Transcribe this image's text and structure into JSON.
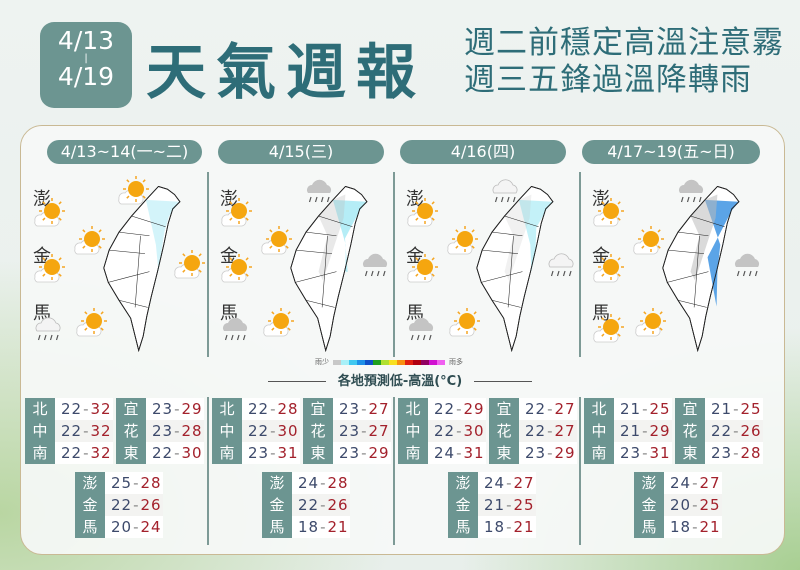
{
  "header": {
    "date_start": "4/13",
    "date_sep": "|",
    "date_end": "4/19",
    "title": "天氣週報",
    "subtitle_line1": "週二前穩定高溫注意霧",
    "subtitle_line2": "週三五鋒過溫降轉雨"
  },
  "colors": {
    "accent": "#6c9591",
    "title": "#2e6d78",
    "low": "#3d4a6b",
    "high": "#a3212c"
  },
  "islands": {
    "penghu": "澎",
    "kinmen": "金",
    "matsu": "馬"
  },
  "legend": {
    "less": "雨少",
    "more": "雨多",
    "colors": [
      "#c8c8c8",
      "#a8f0f8",
      "#40c8f0",
      "#1e90e8",
      "#1050c8",
      "#20a020",
      "#b0e030",
      "#f8e020",
      "#f89010",
      "#e02010",
      "#b00010",
      "#900060",
      "#d010d0",
      "#f060f0"
    ]
  },
  "table_title": "各地預測低-高溫(°C)",
  "panels": [
    {
      "label": "4/13~14(一~二)",
      "rain": 0.15,
      "icons": {
        "north": "sun-cloud",
        "penghu": "sun",
        "west": "sun",
        "kinmen": "sun",
        "east": "sun",
        "matsu_east": "sun",
        "matsu": "rain-light"
      },
      "left": [
        {
          "name": "北",
          "low": "22",
          "high": "32"
        },
        {
          "name": "中",
          "low": "22",
          "high": "32"
        },
        {
          "name": "南",
          "low": "22",
          "high": "32"
        }
      ],
      "right": [
        {
          "name": "宜",
          "low": "23",
          "high": "29"
        },
        {
          "name": "花",
          "low": "23",
          "high": "28"
        },
        {
          "name": "東",
          "low": "22",
          "high": "30"
        }
      ],
      "islands": [
        {
          "name": "澎",
          "low": "25",
          "high": "28"
        },
        {
          "name": "金",
          "low": "22",
          "high": "26"
        },
        {
          "name": "馬",
          "low": "20",
          "high": "24"
        }
      ]
    },
    {
      "label": "4/15(三)",
      "rain": 0.55,
      "icons": {
        "north": "rain",
        "penghu": "sun",
        "west": "sun",
        "kinmen": "sun",
        "east": "rain",
        "matsu_east": "sun",
        "matsu": "rain"
      },
      "left": [
        {
          "name": "北",
          "low": "22",
          "high": "28"
        },
        {
          "name": "中",
          "low": "22",
          "high": "30"
        },
        {
          "name": "南",
          "low": "23",
          "high": "31"
        }
      ],
      "right": [
        {
          "name": "宜",
          "low": "23",
          "high": "27"
        },
        {
          "name": "花",
          "low": "23",
          "high": "27"
        },
        {
          "name": "東",
          "low": "23",
          "high": "29"
        }
      ],
      "islands": [
        {
          "name": "澎",
          "low": "24",
          "high": "28"
        },
        {
          "name": "金",
          "low": "22",
          "high": "26"
        },
        {
          "name": "馬",
          "low": "18",
          "high": "21"
        }
      ]
    },
    {
      "label": "4/16(四)",
      "rain": 0.35,
      "icons": {
        "north": "rain-light",
        "penghu": "sun",
        "west": "sun",
        "kinmen": "sun",
        "east": "rain-light",
        "matsu_east": "sun",
        "matsu": "rain"
      },
      "left": [
        {
          "name": "北",
          "low": "22",
          "high": "29"
        },
        {
          "name": "中",
          "low": "22",
          "high": "30"
        },
        {
          "name": "南",
          "low": "24",
          "high": "31"
        }
      ],
      "right": [
        {
          "name": "宜",
          "low": "22",
          "high": "27"
        },
        {
          "name": "花",
          "low": "22",
          "high": "27"
        },
        {
          "name": "東",
          "low": "23",
          "high": "29"
        }
      ],
      "islands": [
        {
          "name": "澎",
          "low": "24",
          "high": "27"
        },
        {
          "name": "金",
          "low": "21",
          "high": "25"
        },
        {
          "name": "馬",
          "low": "18",
          "high": "21"
        }
      ]
    },
    {
      "label": "4/17~19(五~日)",
      "rain": 0.9,
      "icons": {
        "north": "rain",
        "penghu": "sun",
        "west": "sun",
        "kinmen": "sun",
        "east": "rain",
        "matsu_east": "sun",
        "matsu": "sun"
      },
      "left": [
        {
          "name": "北",
          "low": "21",
          "high": "25"
        },
        {
          "name": "中",
          "low": "21",
          "high": "29"
        },
        {
          "name": "南",
          "low": "23",
          "high": "31"
        }
      ],
      "right": [
        {
          "name": "宜",
          "low": "21",
          "high": "25"
        },
        {
          "name": "花",
          "low": "22",
          "high": "26"
        },
        {
          "name": "東",
          "low": "23",
          "high": "28"
        }
      ],
      "islands": [
        {
          "name": "澎",
          "low": "24",
          "high": "27"
        },
        {
          "name": "金",
          "low": "20",
          "high": "25"
        },
        {
          "name": "馬",
          "low": "18",
          "high": "21"
        }
      ]
    }
  ]
}
